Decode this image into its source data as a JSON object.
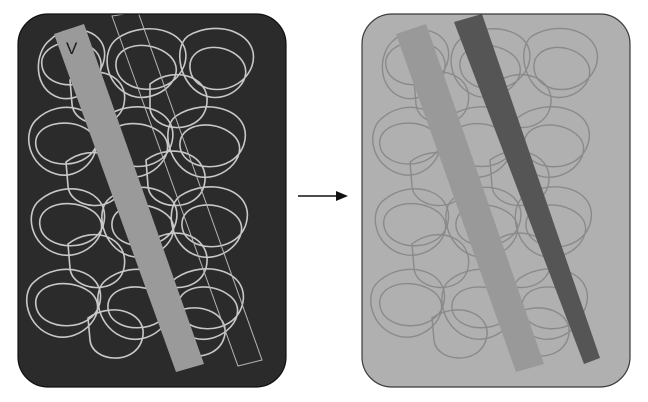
{
  "left_panel": {
    "label": "V",
    "colors": {
      "background": "#2b2b2b",
      "loops": "#c8c8c8",
      "band": "#9a9a9a",
      "band_outline": "#b5b5b5",
      "border": "#111111"
    }
  },
  "arrow": {
    "color": "#111111"
  },
  "right_panel": {
    "colors": {
      "background": "#b0b0b0",
      "loops": "#8a8a8a",
      "band_light": "#999999",
      "band_dark": "#555555",
      "border": "#3a3a3a"
    }
  }
}
